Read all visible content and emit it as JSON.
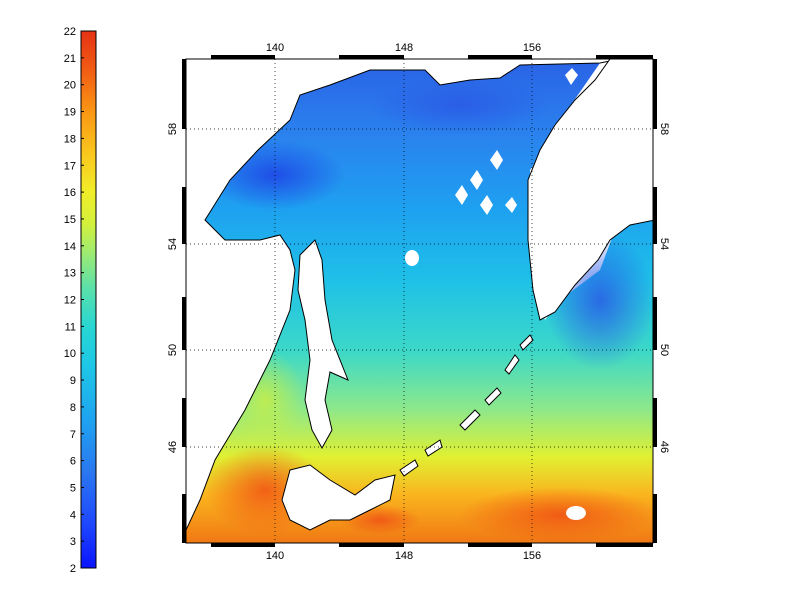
{
  "colorbar": {
    "ticks": [
      "22",
      "21",
      "20",
      "19",
      "18",
      "17",
      "16",
      "15",
      "14",
      "13",
      "12",
      "11",
      "10",
      "9",
      "8",
      "7",
      "6",
      "5",
      "4",
      "3",
      "2"
    ],
    "colors": [
      "#0a14ff",
      "#1e46ff",
      "#2a6ef0",
      "#2a8cf0",
      "#1ea5f0",
      "#1ebee8",
      "#1ed2dc",
      "#3adcc8",
      "#6ee6a0",
      "#a0ee6e",
      "#d2f03c",
      "#f0ee28",
      "#fad21e",
      "#faa814",
      "#fa7814",
      "#f05014",
      "#e63214"
    ]
  },
  "map": {
    "lon_ticks": [
      "140",
      "148",
      "156"
    ],
    "lat_ticks": [
      "58",
      "54",
      "50",
      "46"
    ]
  }
}
